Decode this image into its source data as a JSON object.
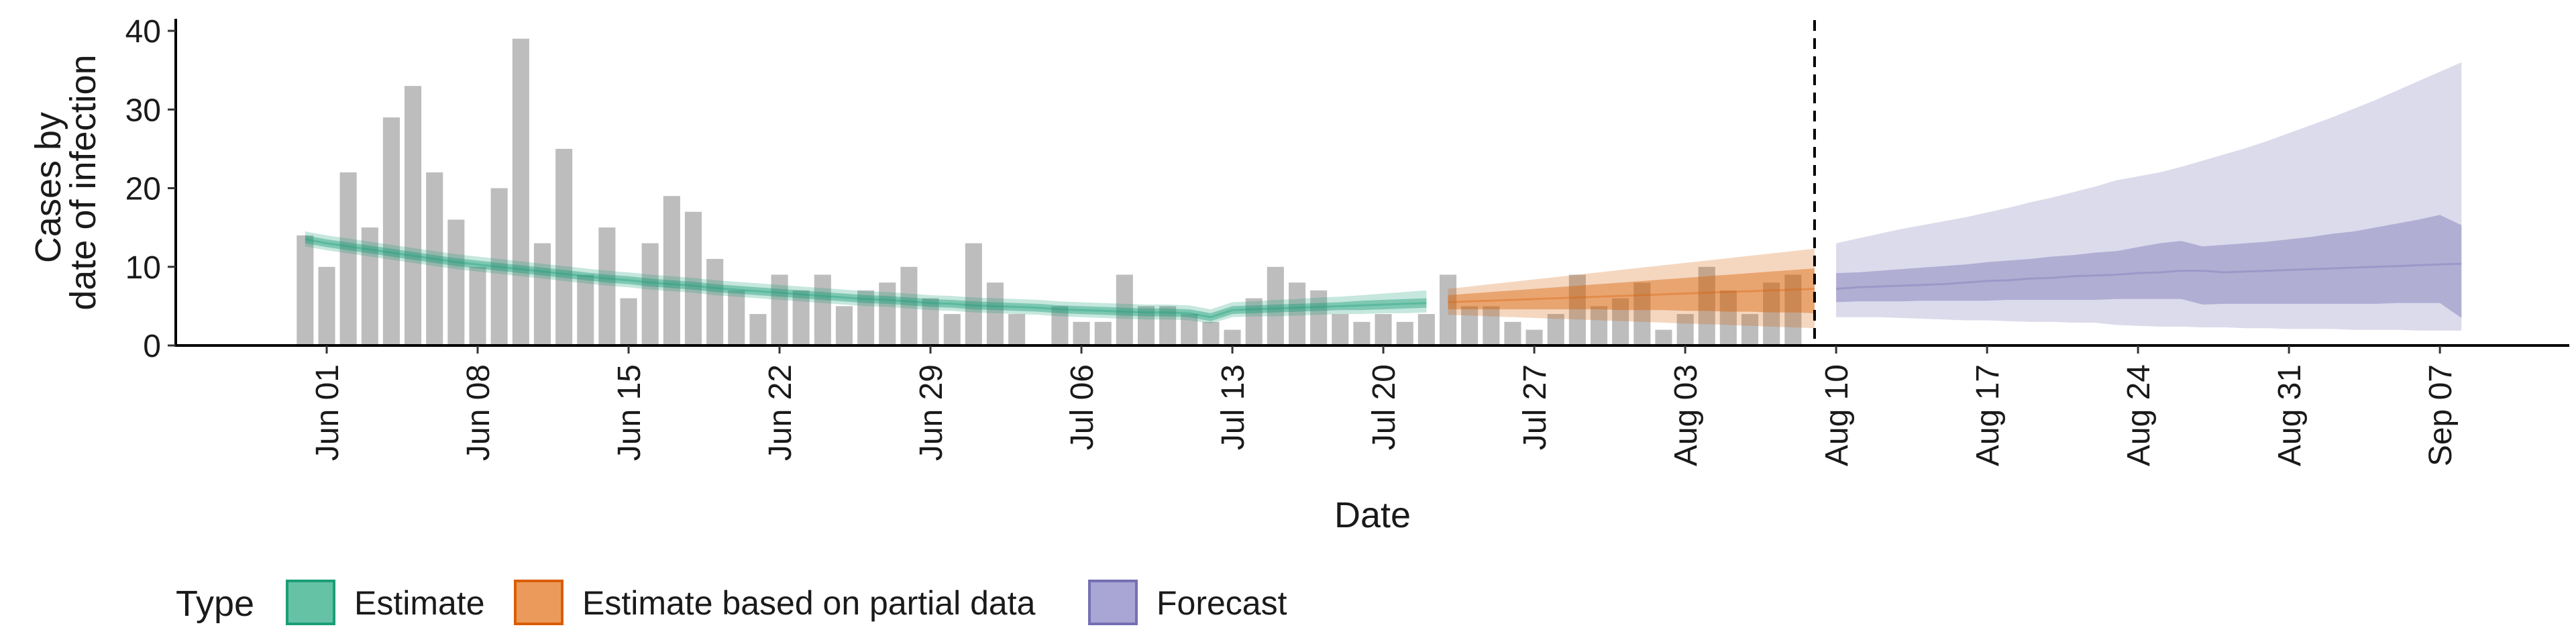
{
  "chart_data": {
    "type": "bar",
    "title": "",
    "xlabel": "Date",
    "ylabel_lines": [
      "Cases by",
      "date of infection"
    ],
    "ylim": [
      0,
      40
    ],
    "yticks": [
      0,
      10,
      20,
      30,
      40
    ],
    "xlim_dates": [
      "2020-05-25",
      "2020-09-13"
    ],
    "xticks": [
      {
        "date": "2020-06-01",
        "label": "Jun 01"
      },
      {
        "date": "2020-06-08",
        "label": "Jun 08"
      },
      {
        "date": "2020-06-15",
        "label": "Jun 15"
      },
      {
        "date": "2020-06-22",
        "label": "Jun 22"
      },
      {
        "date": "2020-06-29",
        "label": "Jun 29"
      },
      {
        "date": "2020-07-06",
        "label": "Jul 06"
      },
      {
        "date": "2020-07-13",
        "label": "Jul 13"
      },
      {
        "date": "2020-07-20",
        "label": "Jul 20"
      },
      {
        "date": "2020-07-27",
        "label": "Jul 27"
      },
      {
        "date": "2020-08-03",
        "label": "Aug 03"
      },
      {
        "date": "2020-08-10",
        "label": "Aug 10"
      },
      {
        "date": "2020-08-17",
        "label": "Aug 17"
      },
      {
        "date": "2020-08-24",
        "label": "Aug 24"
      },
      {
        "date": "2020-08-31",
        "label": "Aug 31"
      },
      {
        "date": "2020-09-07",
        "label": "Sep 07"
      }
    ],
    "forecast_start_date": "2020-08-09",
    "reported_cases": {
      "start_date": "2020-05-31",
      "values": [
        14,
        10,
        22,
        15,
        29,
        33,
        22,
        16,
        10,
        20,
        39,
        13,
        25,
        9,
        15,
        6,
        13,
        19,
        17,
        11,
        7,
        4,
        9,
        7,
        9,
        5,
        7,
        8,
        10,
        6,
        4,
        13,
        8,
        4,
        0,
        5,
        3,
        3,
        9,
        5,
        5,
        4,
        3,
        2,
        6,
        10,
        8,
        7,
        4,
        3,
        4,
        3,
        4,
        9,
        5,
        5,
        3,
        2,
        4,
        9,
        5,
        6,
        8,
        2,
        4,
        10,
        7,
        4,
        8,
        9
      ]
    },
    "series": [
      {
        "name": "Estimate",
        "color": "#1b9e77",
        "start_date": "2020-05-31",
        "median": [
          13.5,
          13.0,
          12.6,
          12.2,
          11.8,
          11.4,
          11.0,
          10.6,
          10.3,
          10.0,
          9.7,
          9.4,
          9.1,
          8.8,
          8.5,
          8.3,
          8.0,
          7.8,
          7.6,
          7.3,
          7.1,
          6.9,
          6.7,
          6.5,
          6.3,
          6.1,
          5.9,
          5.8,
          5.6,
          5.4,
          5.3,
          5.1,
          5.0,
          4.9,
          4.8,
          4.6,
          4.5,
          4.4,
          4.3,
          4.2,
          4.2,
          4.1,
          3.6,
          4.5,
          4.6,
          4.7,
          4.8,
          4.9,
          5.0,
          5.1,
          5.2,
          5.3,
          5.4
        ],
        "inner_low": [
          13.0,
          12.5,
          12.1,
          11.7,
          11.3,
          10.9,
          10.5,
          10.1,
          9.8,
          9.5,
          9.2,
          8.9,
          8.6,
          8.3,
          8.0,
          7.8,
          7.5,
          7.3,
          7.1,
          6.8,
          6.6,
          6.4,
          6.2,
          6.0,
          5.8,
          5.6,
          5.4,
          5.3,
          5.1,
          4.9,
          4.8,
          4.6,
          4.5,
          4.4,
          4.3,
          4.1,
          4.0,
          3.9,
          3.8,
          3.7,
          3.7,
          3.6,
          3.1,
          4.0,
          4.1,
          4.2,
          4.3,
          4.4,
          4.5,
          4.5,
          4.6,
          4.7,
          4.8
        ],
        "inner_high": [
          14.0,
          13.5,
          13.1,
          12.7,
          12.3,
          11.9,
          11.5,
          11.1,
          10.8,
          10.5,
          10.2,
          9.9,
          9.6,
          9.3,
          9.0,
          8.8,
          8.5,
          8.3,
          8.1,
          7.8,
          7.6,
          7.4,
          7.2,
          7.0,
          6.8,
          6.6,
          6.4,
          6.3,
          6.1,
          5.9,
          5.8,
          5.6,
          5.5,
          5.4,
          5.3,
          5.1,
          5.0,
          4.9,
          4.8,
          4.7,
          4.7,
          4.6,
          4.1,
          5.0,
          5.1,
          5.2,
          5.3,
          5.4,
          5.5,
          5.7,
          5.8,
          5.9,
          6.0
        ],
        "outer_low": [
          12.6,
          12.1,
          11.7,
          11.3,
          10.9,
          10.5,
          10.1,
          9.7,
          9.4,
          9.1,
          8.8,
          8.5,
          8.2,
          7.9,
          7.6,
          7.4,
          7.1,
          6.9,
          6.7,
          6.4,
          6.2,
          6.0,
          5.8,
          5.6,
          5.4,
          5.2,
          5.0,
          4.9,
          4.7,
          4.5,
          4.4,
          4.2,
          4.1,
          4.0,
          3.9,
          3.7,
          3.6,
          3.5,
          3.4,
          3.3,
          3.3,
          3.2,
          2.8,
          3.6,
          3.7,
          3.7,
          3.8,
          3.9,
          4.0,
          4.0,
          4.1,
          4.1,
          4.2
        ],
        "outer_high": [
          14.5,
          14.0,
          13.6,
          13.2,
          12.8,
          12.4,
          12.0,
          11.6,
          11.3,
          11.0,
          10.7,
          10.4,
          10.1,
          9.8,
          9.5,
          9.3,
          9.0,
          8.8,
          8.6,
          8.3,
          8.1,
          7.9,
          7.7,
          7.5,
          7.3,
          7.1,
          6.9,
          6.8,
          6.6,
          6.4,
          6.3,
          6.1,
          6.0,
          5.9,
          5.8,
          5.6,
          5.5,
          5.4,
          5.3,
          5.2,
          5.2,
          5.1,
          4.6,
          5.5,
          5.6,
          5.8,
          5.9,
          6.1,
          6.2,
          6.4,
          6.6,
          6.8,
          7.0
        ]
      },
      {
        "name": "Estimate based on partial data",
        "color": "#d95f02",
        "start_date": "2020-07-23",
        "median": [
          5.5,
          5.6,
          5.7,
          5.8,
          5.9,
          6.0,
          6.1,
          6.2,
          6.3,
          6.4,
          6.5,
          6.6,
          6.7,
          6.8,
          6.9,
          7.0,
          7.1,
          7.2
        ],
        "inner_low": [
          4.6,
          4.6,
          4.6,
          4.6,
          4.6,
          4.6,
          4.6,
          4.6,
          4.5,
          4.5,
          4.5,
          4.4,
          4.4,
          4.3,
          4.3,
          4.2,
          4.2,
          4.1
        ],
        "inner_high": [
          6.4,
          6.6,
          6.8,
          7.0,
          7.2,
          7.4,
          7.6,
          7.8,
          8.0,
          8.2,
          8.4,
          8.6,
          8.8,
          9.0,
          9.2,
          9.4,
          9.6,
          9.8
        ],
        "outer_low": [
          3.9,
          3.8,
          3.7,
          3.6,
          3.5,
          3.4,
          3.3,
          3.2,
          3.1,
          3.0,
          2.9,
          2.8,
          2.7,
          2.6,
          2.5,
          2.4,
          2.3,
          2.2
        ],
        "outer_high": [
          7.2,
          7.5,
          7.8,
          8.1,
          8.4,
          8.7,
          9.0,
          9.3,
          9.6,
          9.9,
          10.2,
          10.5,
          10.8,
          11.1,
          11.4,
          11.7,
          12.0,
          12.3
        ]
      },
      {
        "name": "Forecast",
        "color": "#7570b3",
        "start_date": "2020-08-10",
        "median": [
          7.2,
          7.4,
          7.5,
          7.6,
          7.7,
          7.8,
          8.0,
          8.2,
          8.3,
          8.5,
          8.6,
          8.8,
          8.9,
          9.0,
          9.2,
          9.3,
          9.5,
          9.5,
          9.3,
          9.4,
          9.5,
          9.6,
          9.7,
          9.8,
          9.9,
          10.0,
          10.1,
          10.2,
          10.3,
          10.4
        ],
        "inner_low": [
          5.5,
          5.6,
          5.6,
          5.6,
          5.7,
          5.7,
          5.7,
          5.7,
          5.8,
          5.8,
          5.8,
          5.8,
          5.8,
          5.9,
          5.9,
          5.9,
          5.9,
          5.2,
          5.3,
          5.3,
          5.3,
          5.3,
          5.3,
          5.3,
          5.3,
          5.3,
          5.4,
          5.4,
          5.4,
          3.5
        ],
        "inner_high": [
          9.2,
          9.3,
          9.5,
          9.7,
          9.9,
          10.1,
          10.3,
          10.6,
          10.8,
          11.0,
          11.3,
          11.5,
          11.8,
          12.0,
          12.5,
          13.0,
          13.3,
          12.6,
          12.8,
          13.0,
          13.2,
          13.5,
          13.8,
          14.2,
          14.5,
          15.0,
          15.5,
          16.0,
          16.6,
          15.3
        ],
        "outer_low": [
          3.6,
          3.6,
          3.6,
          3.5,
          3.4,
          3.3,
          3.2,
          3.2,
          3.1,
          3.0,
          3.0,
          2.9,
          2.9,
          2.6,
          2.5,
          2.4,
          2.4,
          2.3,
          2.3,
          2.2,
          2.2,
          2.1,
          2.1,
          2.1,
          2.0,
          2.0,
          2.0,
          1.9,
          1.9,
          1.9
        ],
        "outer_high": [
          13.0,
          13.6,
          14.2,
          14.8,
          15.3,
          15.8,
          16.3,
          16.9,
          17.5,
          18.2,
          18.8,
          19.5,
          20.2,
          21.0,
          21.5,
          22.0,
          22.7,
          23.5,
          24.3,
          25.1,
          26.0,
          27.0,
          28.0,
          29.0,
          30.1,
          31.2,
          32.4,
          33.6,
          34.8,
          36.0
        ]
      }
    ],
    "legend": {
      "position": "bottom",
      "title": "Type",
      "entries": [
        {
          "label": "Estimate",
          "fill": "#66c2a5",
          "border": "#1b9e77"
        },
        {
          "label": "Estimate based on partial data",
          "fill": "#ec9a5b",
          "border": "#d95f02"
        },
        {
          "label": "Forecast",
          "fill": "#a9a5d4",
          "border": "#7570b3"
        }
      ]
    },
    "grid": false
  }
}
